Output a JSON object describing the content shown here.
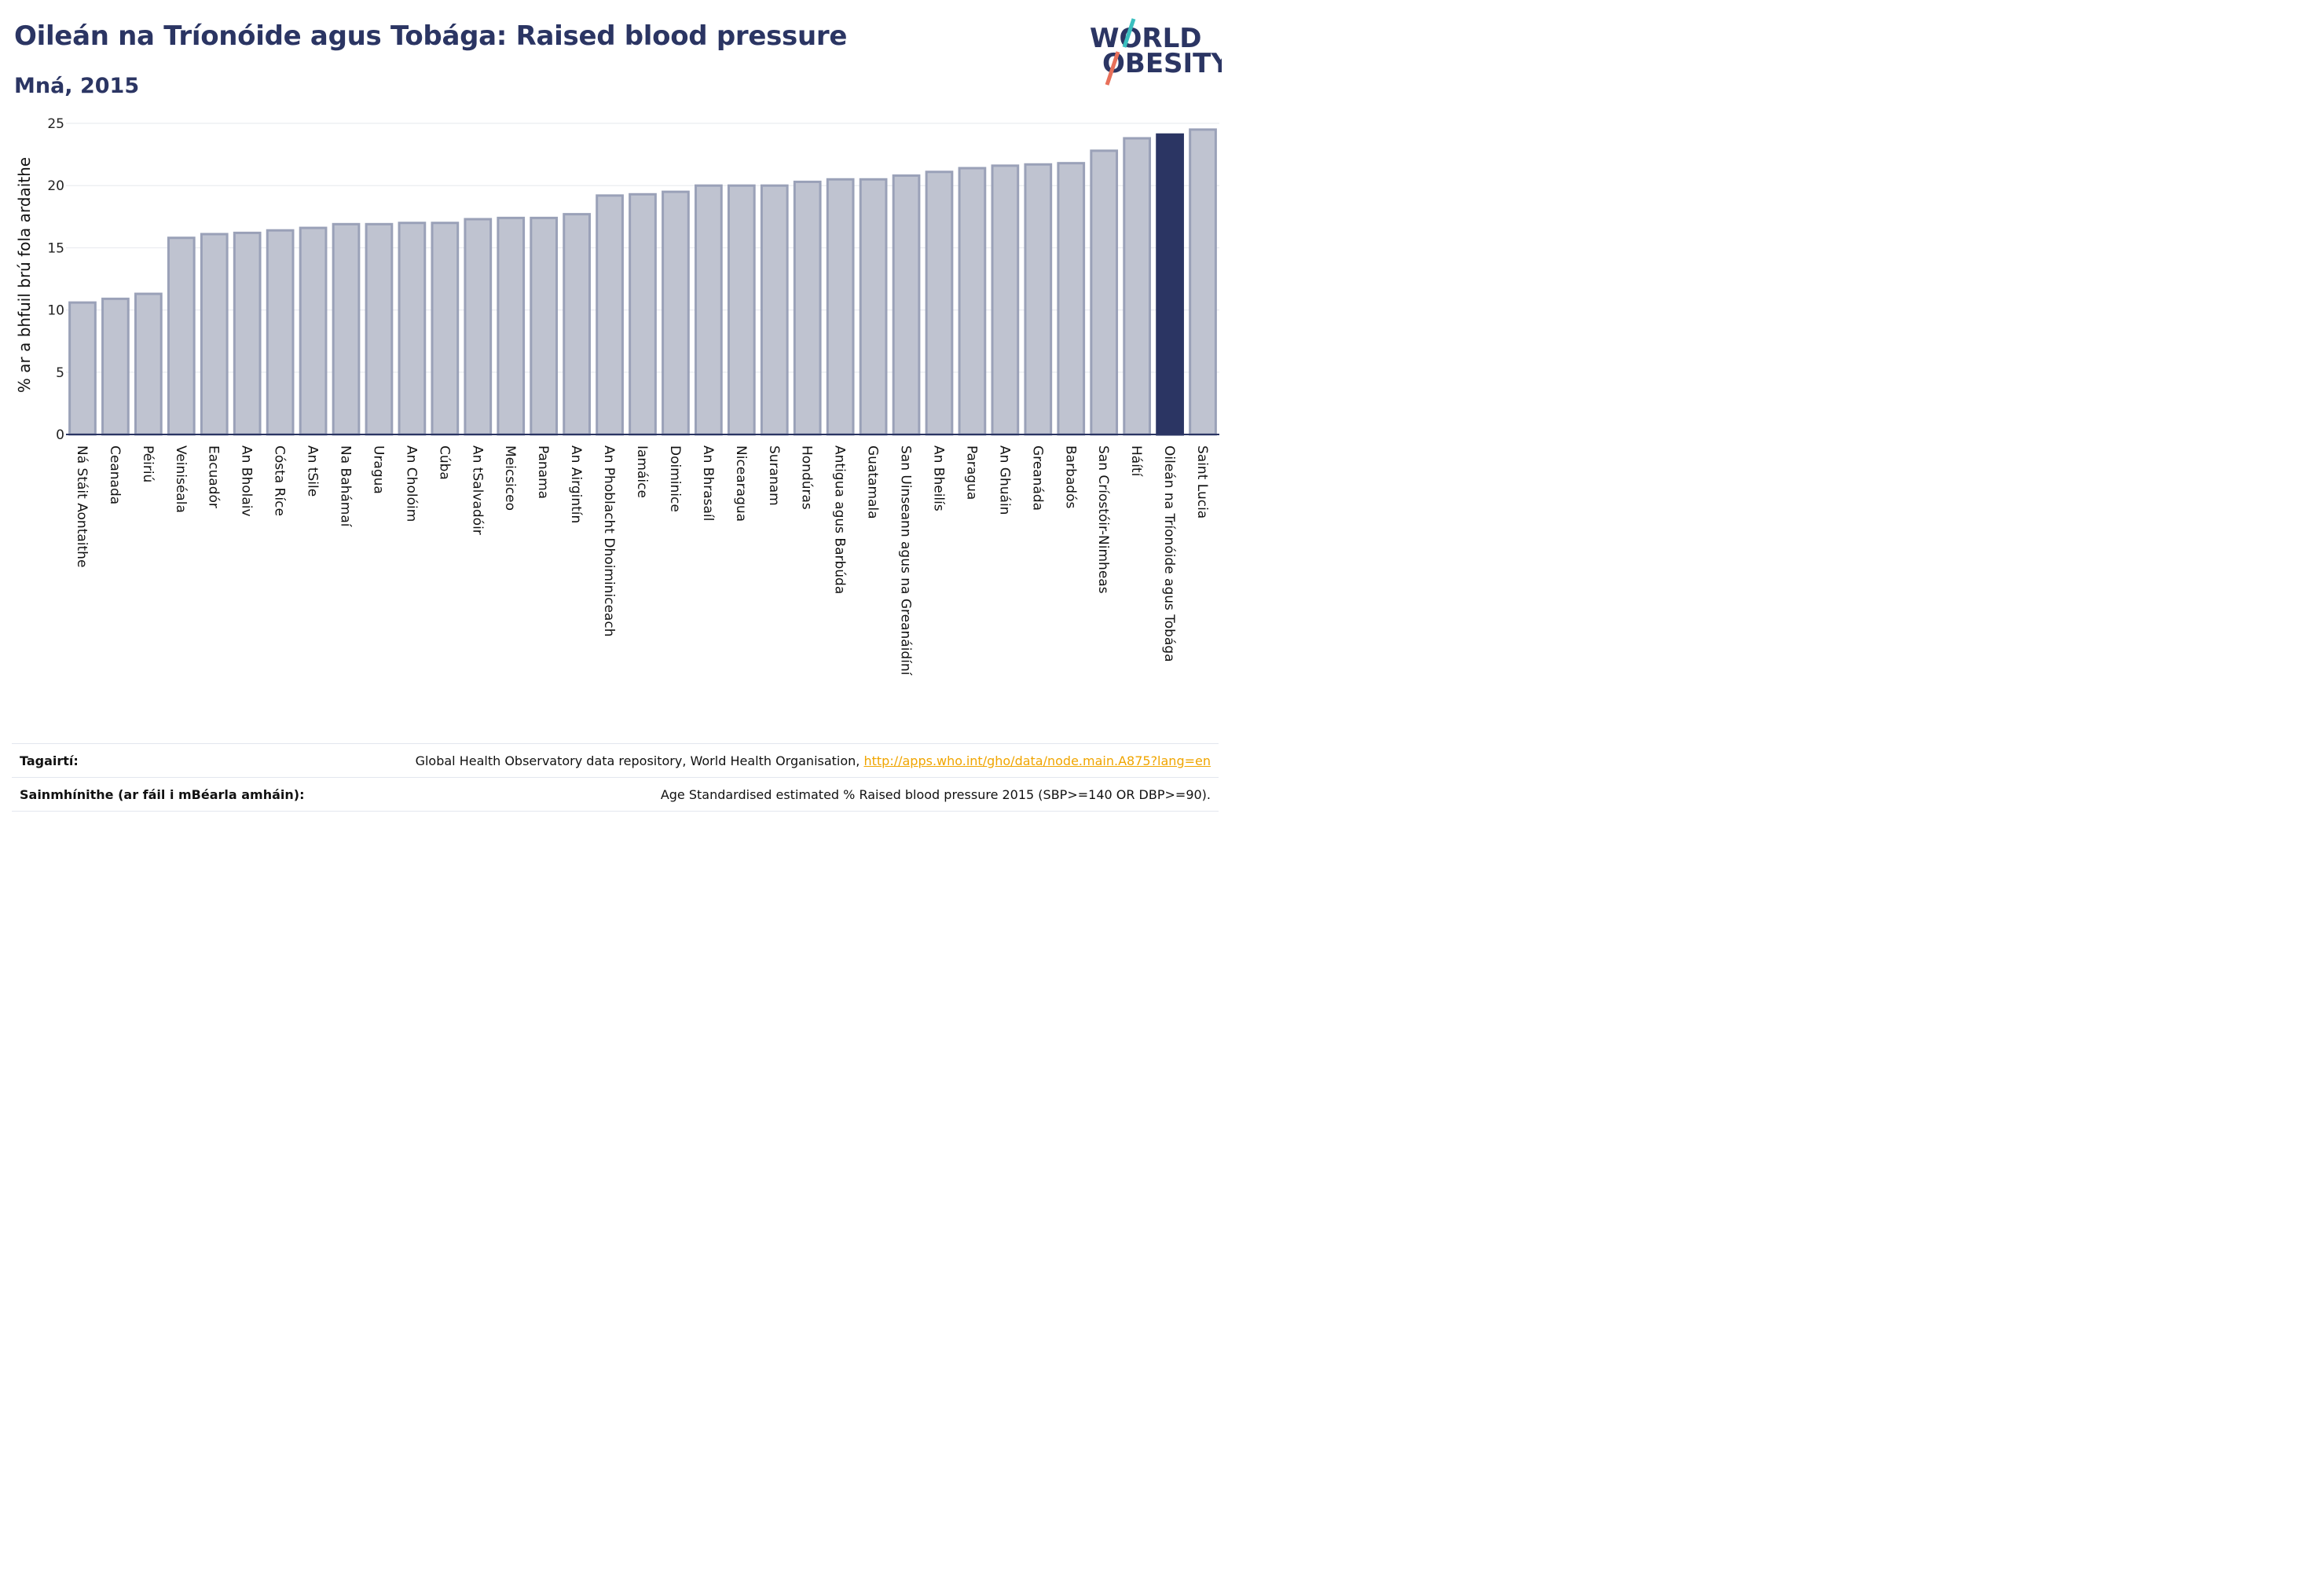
{
  "header": {
    "title": "Oileán na Tríonóide agus Tobága: Raised blood pressure",
    "subtitle": "Mná, 2015",
    "logo_line1": "WORLD",
    "logo_line2": "OBESITY"
  },
  "chart_data": {
    "type": "bar",
    "ylabel": "% ar a bhfuil brú fola ardaithe",
    "ylim": [
      0,
      25
    ],
    "yticks": [
      0,
      5,
      10,
      15,
      20,
      25
    ],
    "grid": true,
    "highlight": "Oileán na Tríonóide agus Tobága",
    "colors": {
      "bar": "#bfc3d0",
      "bar_edge": "#9aa1b8",
      "highlight": "#2b3563"
    },
    "categories": [
      "Ná Stáit Aontaithe",
      "Ceanada",
      "Péiriú",
      "Veiniséala",
      "Eacuadór",
      "An Bholaiv",
      "Cósta Ríce",
      "An tSile",
      "Na Bahámaí",
      "Uragua",
      "An Cholóim",
      "Cúba",
      "An tSalvadóir",
      "Meicsiceo",
      "Panama",
      "An Airgintín",
      "An Phoblacht Dhoiminiceach",
      "Iamáice",
      "Doiminice",
      "An Bhrasaíl",
      "Nicearagua",
      "Suranam",
      "Hondúras",
      "Antigua agus Barbúda",
      "Guatamala",
      "San Uinseann agus na Greanáidíní",
      "An Bheilís",
      "Paragua",
      "An Ghuáin",
      "Greanáda",
      "Barbadós",
      "San Críostóir-Nimheas",
      "Háítí",
      "Oileán na Tríonóide agus Tobága",
      "Saint Lucia"
    ],
    "values": [
      10.6,
      10.9,
      11.3,
      15.8,
      16.1,
      16.2,
      16.4,
      16.6,
      16.9,
      16.9,
      17.0,
      17.0,
      17.3,
      17.4,
      17.4,
      17.7,
      19.2,
      19.3,
      19.5,
      20.0,
      20.0,
      20.0,
      20.3,
      20.5,
      20.5,
      20.8,
      21.1,
      21.4,
      21.6,
      21.7,
      21.8,
      22.8,
      23.8,
      24.1,
      24.5
    ]
  },
  "footer": {
    "ref_label": "Tagairtí:",
    "ref_text": "Global Health Observatory data repository, World Health Organisation, ",
    "ref_link": "http://apps.who.int/gho/data/node.main.A875?lang=en",
    "def_label": "Sainmhínithe (ar fáil i mBéarla amháin):",
    "def_text": "Age Standardised estimated % Raised blood pressure 2015 (SBP>=140 OR DBP>=90)."
  }
}
